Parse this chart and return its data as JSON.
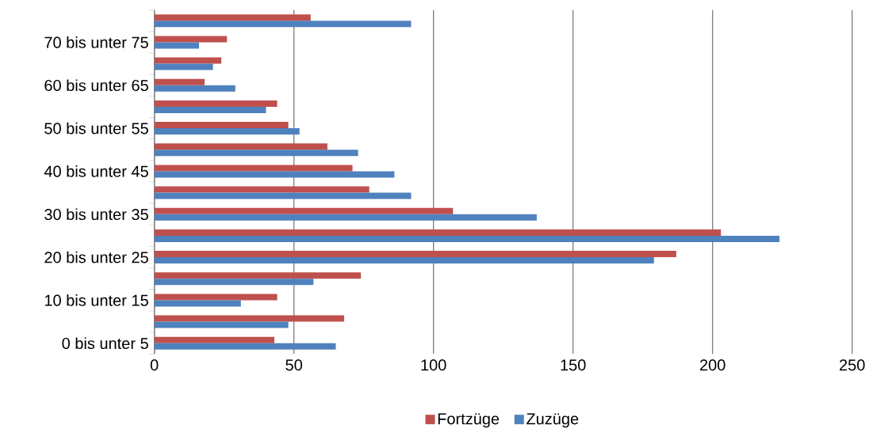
{
  "chart_data": {
    "type": "bar",
    "orientation": "horizontal",
    "categories": [
      null,
      "70 bis unter 75",
      null,
      "60 bis unter 65",
      null,
      "50 bis unter 55",
      null,
      "40 bis unter 45",
      null,
      "30 bis unter 35",
      null,
      "20 bis unter 25",
      null,
      "10 bis unter 15",
      null,
      "0 bis unter 5"
    ],
    "series": [
      {
        "name": "Fortzüge",
        "color": "#c0504d",
        "values": [
          56,
          26,
          24,
          18,
          44,
          48,
          62,
          71,
          77,
          107,
          203,
          187,
          74,
          44,
          68,
          43
        ]
      },
      {
        "name": "Zuzüge",
        "color": "#4f81bd",
        "values": [
          92,
          16,
          21,
          29,
          40,
          52,
          73,
          86,
          92,
          137,
          224,
          179,
          57,
          31,
          48,
          65
        ]
      }
    ],
    "xlim": [
      0,
      250
    ],
    "xticks": [
      0,
      50,
      100,
      150,
      200,
      250
    ],
    "grid": "x",
    "legend": "bottom"
  }
}
